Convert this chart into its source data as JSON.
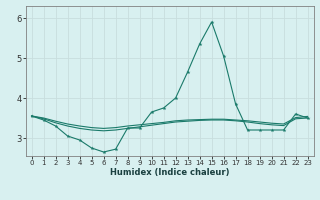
{
  "xlabel": "Humidex (Indice chaleur)",
  "bg_color": "#d8f0f0",
  "grid_color": "#c8dede",
  "line_color": "#1a7a6a",
  "xlim": [
    -0.5,
    23.5
  ],
  "ylim": [
    2.55,
    6.3
  ],
  "yticks": [
    3,
    4,
    5,
    6
  ],
  "xticks": [
    0,
    1,
    2,
    3,
    4,
    5,
    6,
    7,
    8,
    9,
    10,
    11,
    12,
    13,
    14,
    15,
    16,
    17,
    18,
    19,
    20,
    21,
    22,
    23
  ],
  "y_main": [
    3.55,
    3.45,
    3.3,
    3.05,
    2.95,
    2.75,
    2.65,
    2.72,
    3.25,
    3.25,
    3.65,
    3.75,
    4.0,
    4.65,
    5.35,
    5.9,
    5.05,
    3.85,
    3.2,
    3.2,
    3.2,
    3.2,
    3.6,
    3.5
  ],
  "y_flat1": [
    3.55,
    3.48,
    3.38,
    3.3,
    3.24,
    3.2,
    3.18,
    3.2,
    3.24,
    3.28,
    3.32,
    3.36,
    3.4,
    3.42,
    3.44,
    3.45,
    3.45,
    3.43,
    3.4,
    3.36,
    3.33,
    3.31,
    3.48,
    3.5
  ],
  "y_flat2": [
    3.55,
    3.5,
    3.42,
    3.35,
    3.3,
    3.26,
    3.24,
    3.26,
    3.3,
    3.33,
    3.36,
    3.39,
    3.43,
    3.45,
    3.46,
    3.47,
    3.47,
    3.45,
    3.43,
    3.4,
    3.37,
    3.35,
    3.51,
    3.54
  ]
}
